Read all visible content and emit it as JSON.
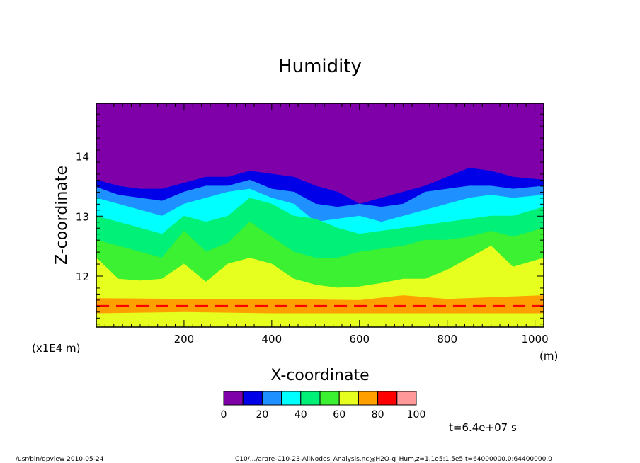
{
  "chart_data": {
    "type": "heatmap",
    "title": "Humidity",
    "xlabel": "X-coordinate",
    "ylabel": "Z-coordinate",
    "x_unit": "(m)",
    "y_unit": "(x1E4 m)",
    "xlim": [
      0,
      1020
    ],
    "ylim": [
      11.15,
      14.88
    ],
    "x_ticks": [
      200,
      400,
      600,
      800,
      1000
    ],
    "y_ticks": [
      12,
      13,
      14
    ],
    "colorbar": {
      "levels": [
        0,
        10,
        20,
        30,
        40,
        50,
        60,
        70,
        80,
        90,
        100
      ],
      "tick_labels": [
        "0",
        "20",
        "40",
        "60",
        "80",
        "100"
      ],
      "colors": [
        "#7f00a8",
        "#0000e8",
        "#1e90ff",
        "#00ffff",
        "#00f078",
        "#3cf032",
        "#e6ff1e",
        "#ffa000",
        "#ff0000",
        "#ff9999"
      ]
    },
    "time_label": "t=6.4e+07 s",
    "contour_boundaries": [
      {
        "level": 80,
        "x": [
          0,
          1020
        ],
        "z_lower": [
          11.5,
          11.5
        ],
        "z_upper": [
          11.5,
          11.5
        ]
      },
      {
        "level": 70,
        "x": [
          0,
          200,
          400,
          600,
          700,
          800,
          1020
        ],
        "z_lower": [
          11.38,
          11.4,
          11.38,
          11.38,
          11.38,
          11.38,
          11.38
        ],
        "z_upper": [
          11.63,
          11.62,
          11.62,
          11.6,
          11.68,
          11.62,
          11.68
        ]
      },
      {
        "level": 60,
        "x": [
          0,
          50,
          100,
          150,
          200,
          250,
          300,
          350,
          400,
          450,
          500,
          550,
          600,
          650,
          700,
          750,
          800,
          850,
          900,
          950,
          1020
        ],
        "z": [
          12.3,
          11.95,
          11.92,
          11.95,
          12.2,
          11.9,
          12.2,
          12.3,
          12.2,
          11.95,
          11.85,
          11.8,
          11.82,
          11.88,
          11.95,
          11.95,
          12.1,
          12.3,
          12.5,
          12.15,
          12.3
        ]
      },
      {
        "level": 50,
        "x": [
          0,
          50,
          100,
          150,
          200,
          250,
          300,
          350,
          400,
          450,
          500,
          550,
          600,
          650,
          700,
          750,
          800,
          850,
          900,
          950,
          1020
        ],
        "z": [
          12.6,
          12.5,
          12.4,
          12.3,
          12.75,
          12.4,
          12.55,
          12.9,
          12.65,
          12.4,
          12.3,
          12.3,
          12.4,
          12.45,
          12.5,
          12.6,
          12.6,
          12.65,
          12.75,
          12.65,
          12.8
        ]
      },
      {
        "level": 40,
        "x": [
          0,
          50,
          100,
          150,
          200,
          250,
          300,
          350,
          400,
          450,
          500,
          550,
          600,
          650,
          700,
          750,
          800,
          850,
          900,
          950,
          1020
        ],
        "z": [
          13.0,
          12.9,
          12.8,
          12.7,
          13.0,
          12.9,
          13.0,
          13.3,
          13.2,
          13.0,
          12.95,
          12.8,
          12.7,
          12.75,
          12.8,
          12.85,
          12.9,
          12.95,
          13.0,
          13.0,
          13.15
        ]
      },
      {
        "level": 30,
        "x": [
          0,
          50,
          100,
          150,
          200,
          250,
          300,
          350,
          400,
          450,
          500,
          550,
          600,
          650,
          700,
          750,
          800,
          850,
          900,
          950,
          1020
        ],
        "z": [
          13.3,
          13.2,
          13.1,
          13.0,
          13.2,
          13.3,
          13.4,
          13.45,
          13.3,
          13.2,
          12.9,
          12.95,
          13.0,
          12.9,
          13.0,
          13.1,
          13.2,
          13.3,
          13.35,
          13.3,
          13.35
        ]
      },
      {
        "level": 20,
        "x": [
          0,
          50,
          100,
          150,
          200,
          250,
          300,
          350,
          400,
          450,
          500,
          550,
          600,
          650,
          700,
          750,
          800,
          850,
          900,
          950,
          1020
        ],
        "z": [
          13.48,
          13.35,
          13.3,
          13.25,
          13.4,
          13.5,
          13.5,
          13.6,
          13.45,
          13.4,
          13.2,
          13.15,
          13.2,
          13.15,
          13.2,
          13.4,
          13.45,
          13.5,
          13.5,
          13.45,
          13.5
        ]
      },
      {
        "level": 10,
        "x": [
          0,
          50,
          100,
          150,
          200,
          250,
          300,
          350,
          400,
          450,
          500,
          550,
          600,
          650,
          700,
          750,
          800,
          850,
          900,
          950,
          1020
        ],
        "z": [
          13.6,
          13.5,
          13.45,
          13.45,
          13.55,
          13.65,
          13.65,
          13.75,
          13.7,
          13.65,
          13.5,
          13.4,
          13.2,
          13.3,
          13.4,
          13.5,
          13.65,
          13.8,
          13.75,
          13.65,
          13.6
        ]
      }
    ]
  },
  "footer": {
    "left": "/usr/bin/gpview   2010-05-24",
    "right": "C10/.../arare-C10-23-AllNodes_Analysis.nc@H2O-g_Hum,z=1.1e5:1.5e5,t=64000000.0:64400000.0"
  }
}
